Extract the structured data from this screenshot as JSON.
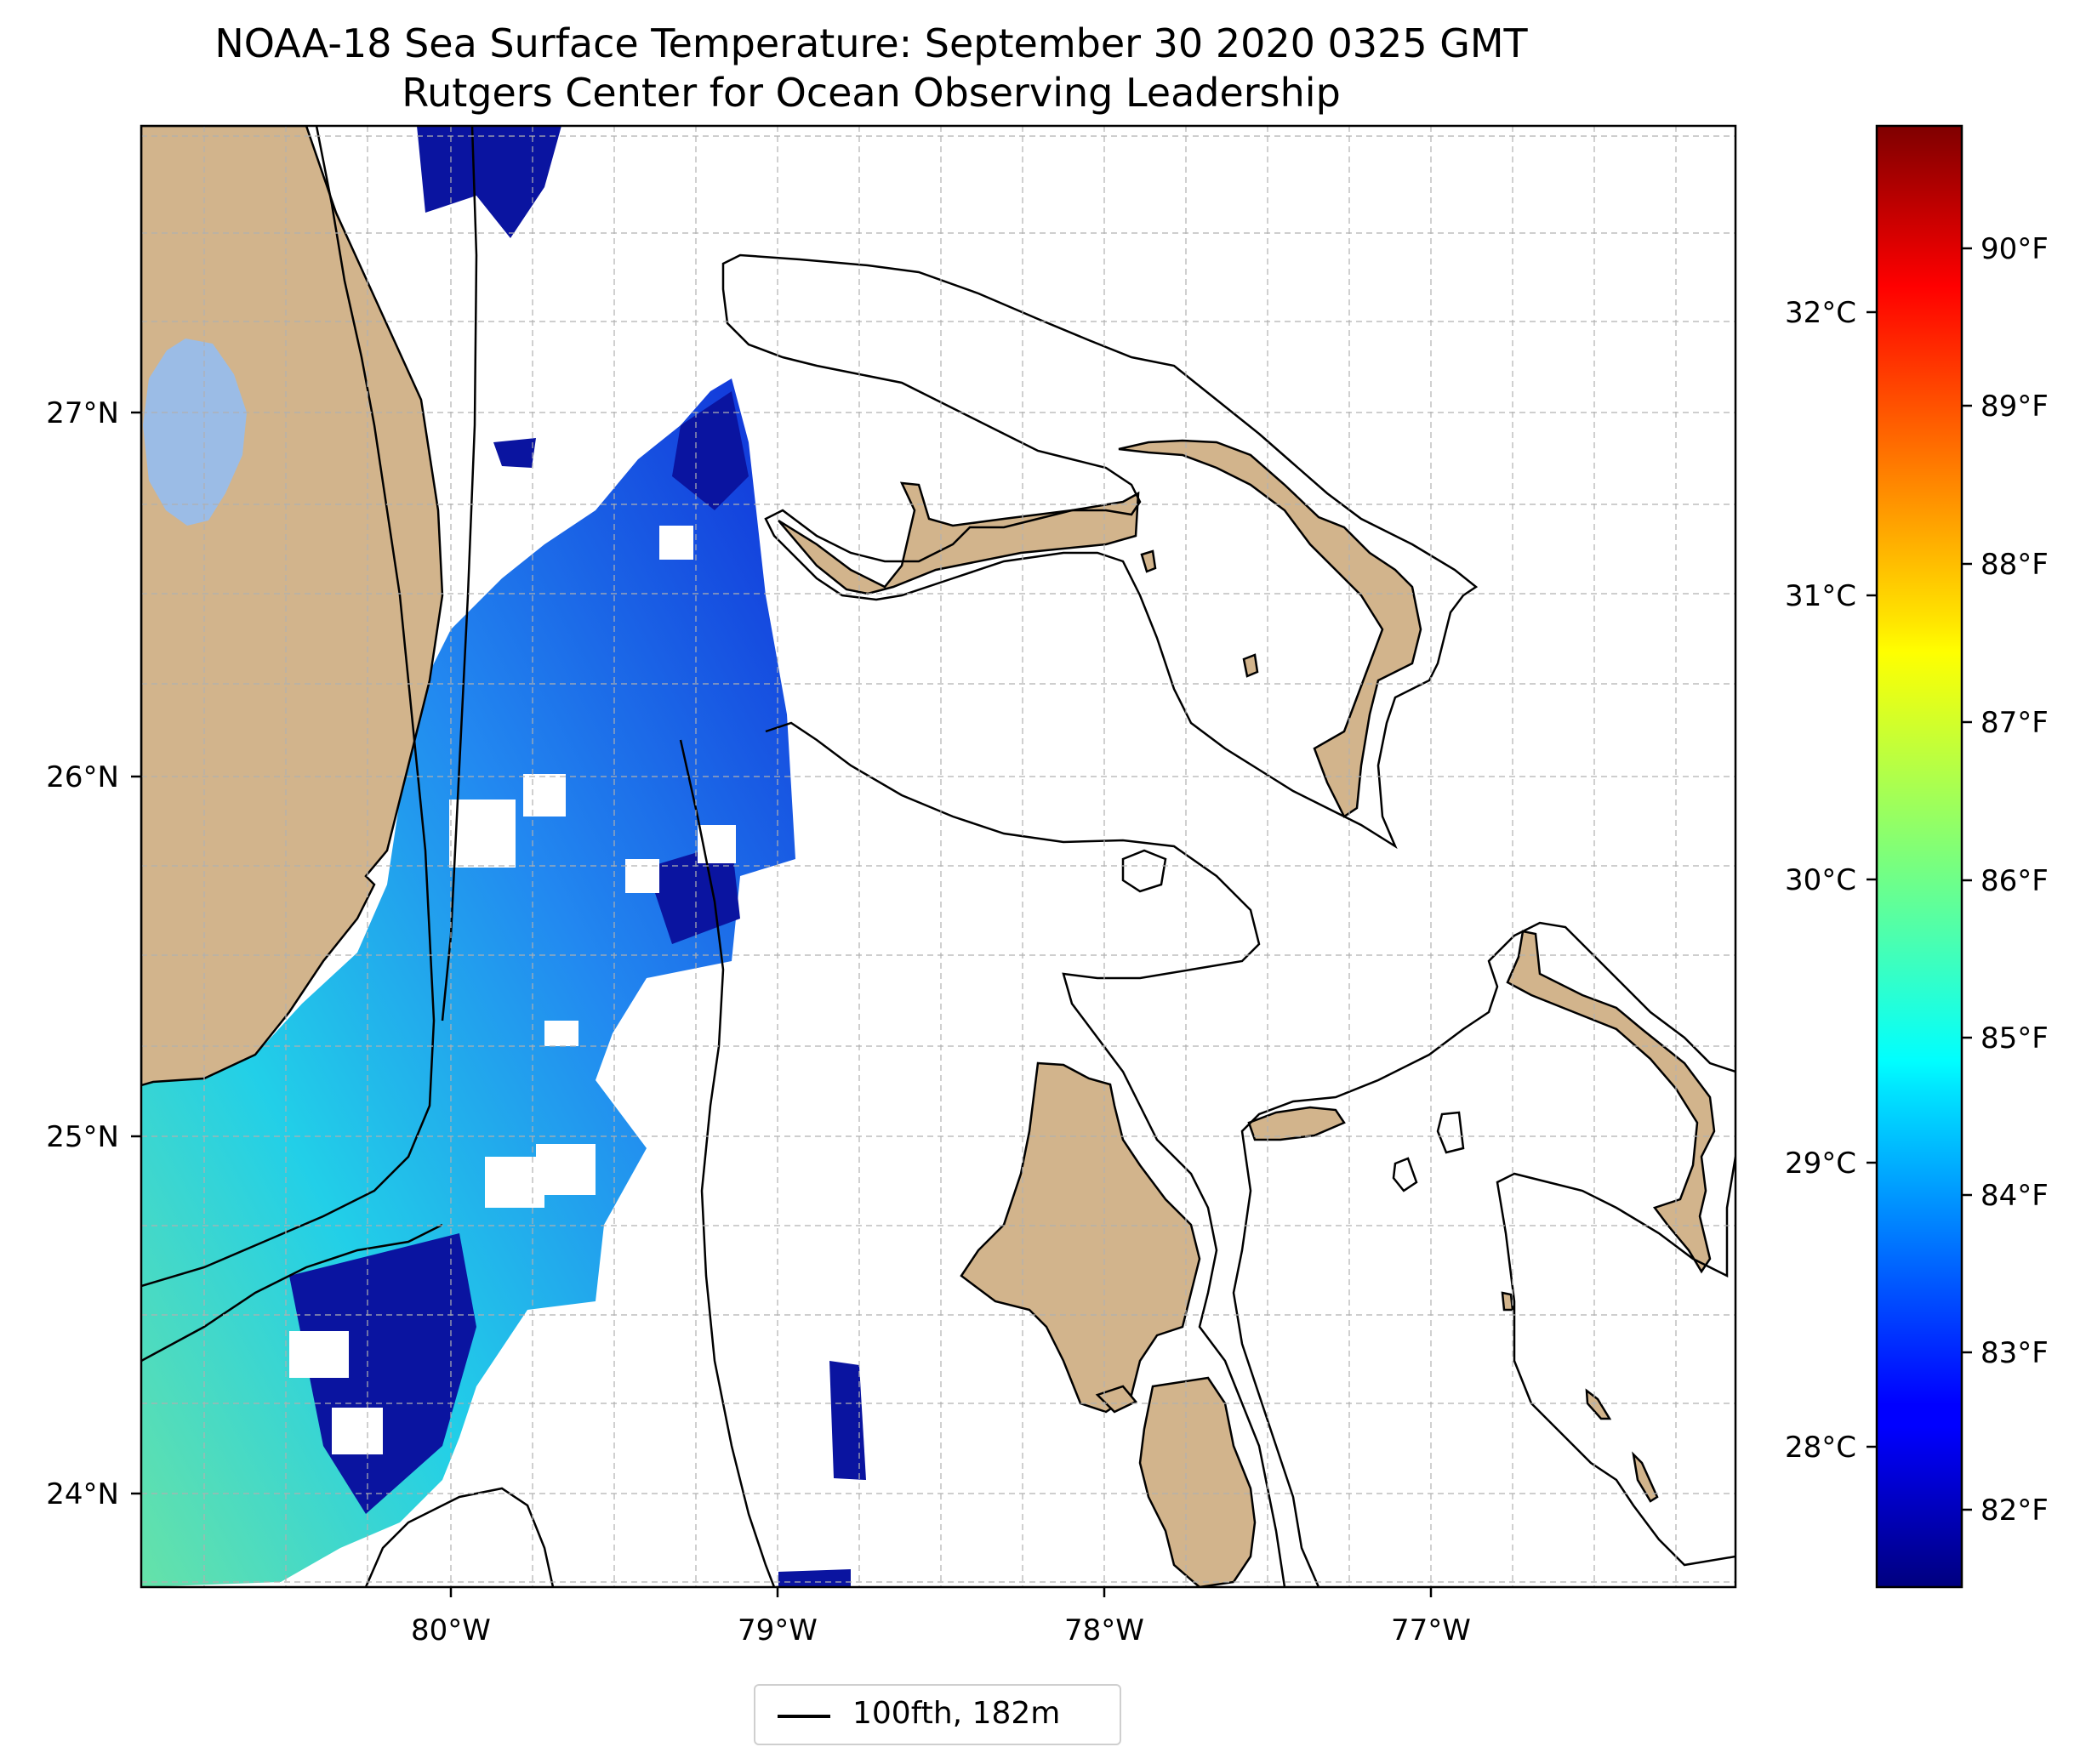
{
  "title": {
    "line1": "NOAA-18 Sea Surface Temperature: September 30 2020 0325 GMT",
    "line2": "Rutgers Center for Ocean Observing Leadership"
  },
  "map": {
    "lon_range": [
      -80.96,
      -76.06
    ],
    "lat_range": [
      23.74,
      27.8
    ],
    "lon_ticks": [
      "80°W",
      "79°W",
      "78°W",
      "77°W"
    ],
    "lat_ticks": [
      "27°N",
      "26°N",
      "25°N",
      "24°N"
    ],
    "grid": true,
    "land_color": "#d2b48c",
    "lake_color": "#9bbce6",
    "contour": "100fth, 182m"
  },
  "colorbar": {
    "colormap": "jet",
    "range_f": [
      81.5,
      90.8
    ],
    "fahrenheit_ticks": [
      "82°F",
      "83°F",
      "84°F",
      "85°F",
      "86°F",
      "87°F",
      "88°F",
      "89°F",
      "90°F"
    ],
    "celsius_ticks": [
      "28°C",
      "29°C",
      "30°C",
      "31°C",
      "32°C"
    ]
  },
  "legend": {
    "label": "100fth, 182m"
  }
}
